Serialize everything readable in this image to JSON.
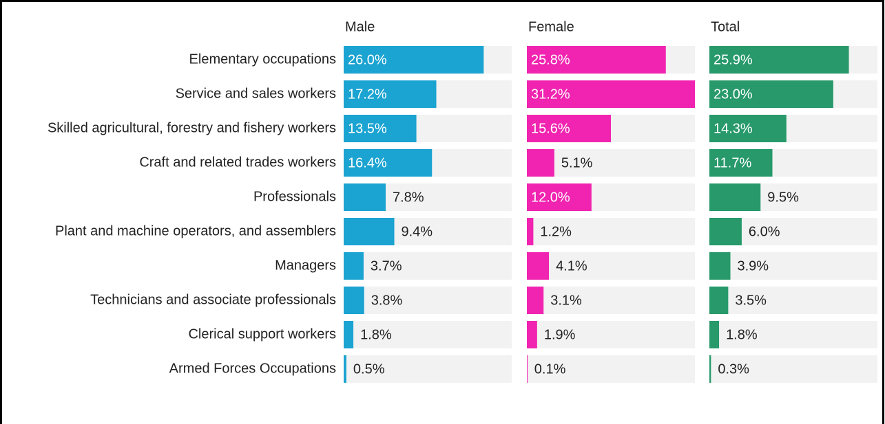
{
  "chart_data": {
    "type": "bar",
    "categories": [
      "Elementary occupations",
      "Service and sales workers",
      "Skilled agricultural, forestry and fishery workers",
      "Craft and related trades workers",
      "Professionals",
      "Plant and machine operators, and assemblers",
      "Managers",
      "Technicians and associate professionals",
      "Clerical support workers",
      "Armed Forces Occupations"
    ],
    "xlim": [
      0,
      31.2
    ],
    "series": [
      {
        "name": "Male",
        "color": "#1ba3d1",
        "values": [
          26.0,
          17.2,
          13.5,
          16.4,
          7.8,
          9.4,
          3.7,
          3.8,
          1.8,
          0.5
        ],
        "value_labels": [
          "26.0%",
          "17.2%",
          "13.5%",
          "16.4%",
          "7.8%",
          "9.4%",
          "3.7%",
          "3.8%",
          "1.8%",
          "0.5%"
        ]
      },
      {
        "name": "Female",
        "color": "#f024b0",
        "values": [
          25.8,
          31.2,
          15.6,
          5.1,
          12.0,
          1.2,
          4.1,
          3.1,
          1.9,
          0.1
        ],
        "value_labels": [
          "25.8%",
          "31.2%",
          "15.6%",
          "5.1%",
          "12.0%",
          "1.2%",
          "4.1%",
          "3.1%",
          "1.9%",
          "0.1%"
        ]
      },
      {
        "name": "Total",
        "color": "#27996b",
        "values": [
          25.9,
          23.0,
          14.3,
          11.7,
          9.5,
          6.0,
          3.9,
          3.5,
          1.8,
          0.3
        ],
        "value_labels": [
          "25.9%",
          "23.0%",
          "14.3%",
          "11.7%",
          "9.5%",
          "6.0%",
          "3.9%",
          "3.5%",
          "1.8%",
          "0.3%"
        ]
      }
    ]
  }
}
